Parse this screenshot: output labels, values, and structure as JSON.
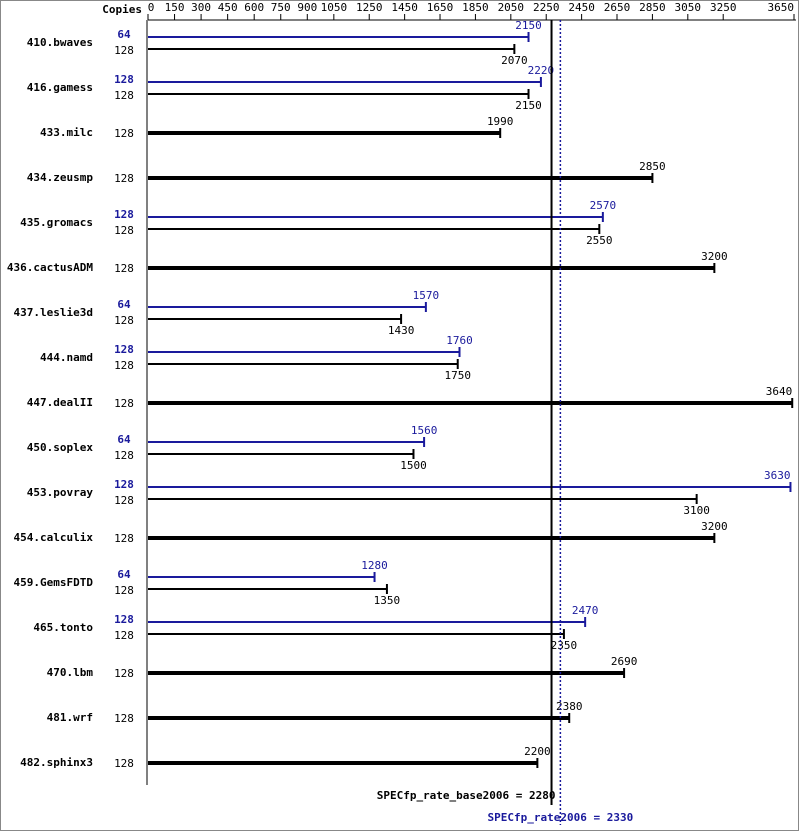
{
  "chart_data": {
    "type": "bar",
    "header": "Copies",
    "categories": [
      "410.bwaves",
      "416.gamess",
      "433.milc",
      "434.zeusmp",
      "435.gromacs",
      "436.cactusADM",
      "437.leslie3d",
      "444.namd",
      "447.dealII",
      "450.soplex",
      "453.povray",
      "454.calculix",
      "459.GemsFDTD",
      "465.tonto",
      "470.lbm",
      "481.wrf",
      "482.sphinx3"
    ],
    "base": {
      "color": "#000000",
      "copies": [
        128,
        128,
        128,
        128,
        128,
        128,
        128,
        128,
        128,
        128,
        128,
        128,
        128,
        128,
        128,
        128,
        128
      ],
      "values": [
        2070,
        2150,
        1990,
        2850,
        2550,
        3200,
        1430,
        1750,
        3640,
        1500,
        3100,
        3200,
        1350,
        2350,
        2690,
        2380,
        2200
      ]
    },
    "peak": {
      "color": "#1a1a9c",
      "copies": [
        64,
        128,
        null,
        null,
        128,
        null,
        64,
        128,
        null,
        64,
        128,
        null,
        64,
        128,
        null,
        null,
        null
      ],
      "values": [
        2150,
        2220,
        null,
        null,
        2570,
        null,
        1570,
        1760,
        null,
        1560,
        3630,
        null,
        1280,
        2470,
        null,
        null,
        null
      ]
    },
    "xlim": [
      0,
      3650
    ],
    "xticks": [
      0,
      150,
      300,
      450,
      600,
      750,
      900,
      1050,
      1250,
      1450,
      1650,
      1850,
      2050,
      2250,
      2450,
      2650,
      2850,
      3050,
      3250,
      3650
    ],
    "base_mean": {
      "value": 2280,
      "label": "SPECfp_rate_base2006 = 2280"
    },
    "peak_mean": {
      "value": 2330,
      "label": "SPECfp_rate2006 = 2330"
    }
  }
}
